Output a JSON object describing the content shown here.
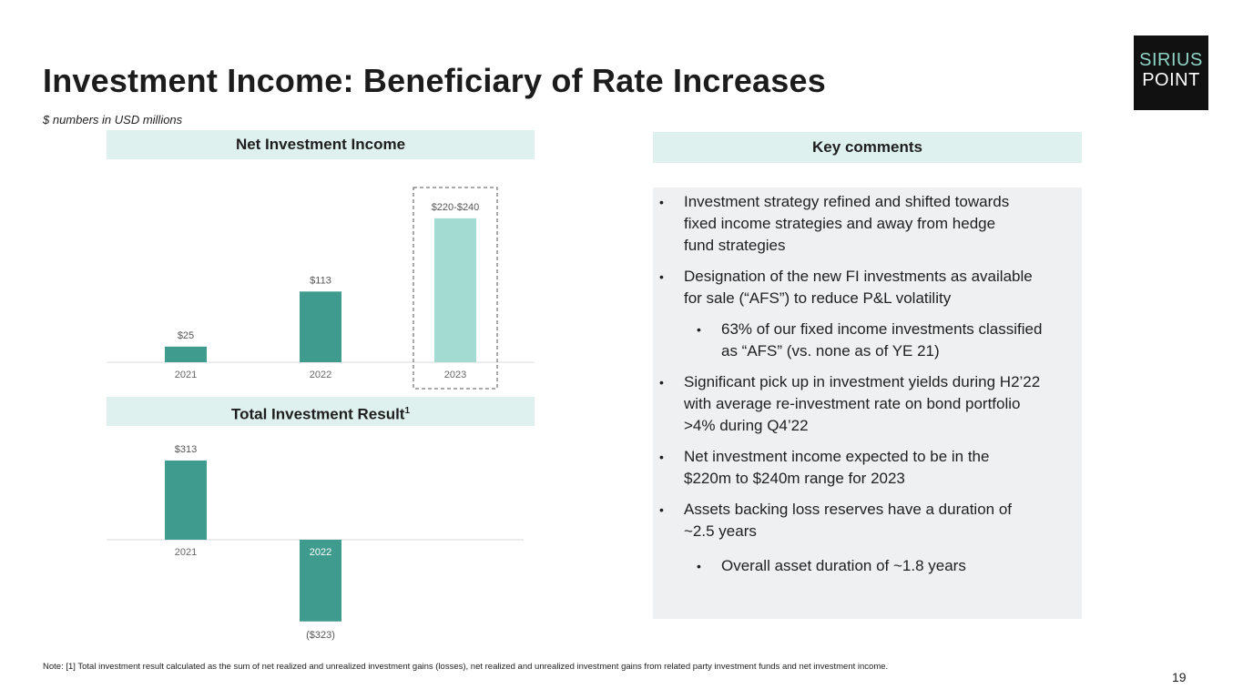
{
  "header": {
    "title": "Investment Income: Beneficiary of Rate Increases",
    "subtitle": "$ numbers in USD millions"
  },
  "logo": {
    "line1": "SIRIUS",
    "line2": "POINT"
  },
  "colors": {
    "dark_teal": "#409b8f",
    "light_teal": "#a3dbd3",
    "panel_bg": "#dff1ee",
    "comments_bg": "#eff0f1"
  },
  "chart_data": [
    {
      "type": "bar",
      "title": "Net Investment Income",
      "categories": [
        "2021",
        "2022",
        "2023"
      ],
      "values": [
        25,
        113,
        230
      ],
      "data_labels": [
        "$25",
        "$113",
        "$220-$240"
      ],
      "highlight": "2023",
      "ylim": [
        0,
        240
      ]
    },
    {
      "type": "bar",
      "title": "Total Investment Result",
      "title_superscript": "1",
      "categories": [
        "2021",
        "2022"
      ],
      "values": [
        313,
        -323
      ],
      "data_labels": [
        "$313",
        "($323)"
      ],
      "ylim": [
        -330,
        320
      ]
    }
  ],
  "comments": {
    "heading": "Key comments",
    "bullets": [
      {
        "level": 1,
        "lines": [
          "Investment strategy refined and shifted towards",
          "fixed income strategies and away from hedge",
          "fund strategies"
        ]
      },
      {
        "level": 1,
        "lines": [
          "Designation of the new FI investments as available",
          "for sale (“AFS”) to reduce P&L volatility"
        ]
      },
      {
        "level": 2,
        "lines": [
          "63% of our fixed income investments classified",
          "as “AFS” (vs. none as of YE 21)"
        ]
      },
      {
        "level": 1,
        "lines": [
          "Significant pick up in investment yields during H2’22",
          "with average re-investment rate on bond portfolio",
          ">4% during Q4’22"
        ]
      },
      {
        "level": 1,
        "lines": [
          "Net investment income expected to be in the",
          "$220m to $240m range for 2023"
        ]
      },
      {
        "level": 1,
        "lines": [
          "Assets backing loss reserves have a duration of",
          "~2.5 years"
        ]
      },
      {
        "level": 2,
        "lines": [
          "Overall asset duration of ~1.8 years"
        ]
      }
    ]
  },
  "footer": {
    "note": "Note: [1] Total investment result calculated as the sum of net realized and unrealized investment gains (losses), net realized and unrealized investment gains from related party investment funds and net investment income.",
    "page_number": "19"
  }
}
